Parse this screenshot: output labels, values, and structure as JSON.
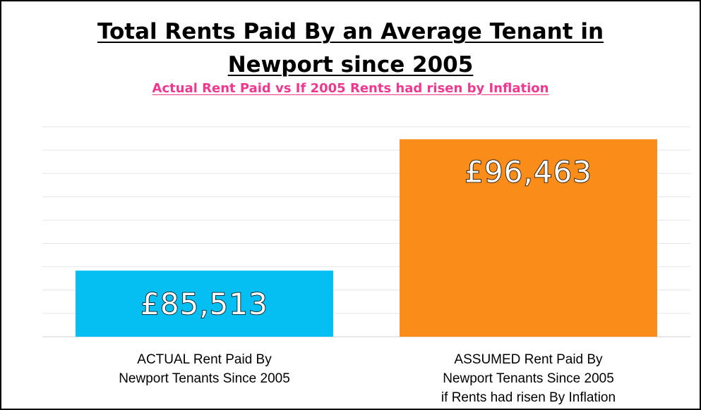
{
  "chart_data": {
    "type": "bar",
    "title_line1": "Total Rents Paid By an Average Tenant in",
    "title_line2": "Newport since 2005",
    "subtitle": "Actual Rent Paid vs If 2005 Rents had risen by Inflation",
    "categories": [
      [
        "ACTUAL  Rent Paid By",
        "Newport Tenants Since 2005"
      ],
      [
        "ASSUMED Rent Paid By",
        "Newport Tenants Since 2005",
        "if Rents had risen By Inflation"
      ]
    ],
    "values": [
      85513,
      96463
    ],
    "value_labels": [
      "£85,513",
      "£96,463"
    ],
    "colors": [
      "#05bff3",
      "#fa8c19"
    ],
    "ylim": [
      80000,
      97500
    ],
    "grid": true,
    "legend": "none"
  }
}
